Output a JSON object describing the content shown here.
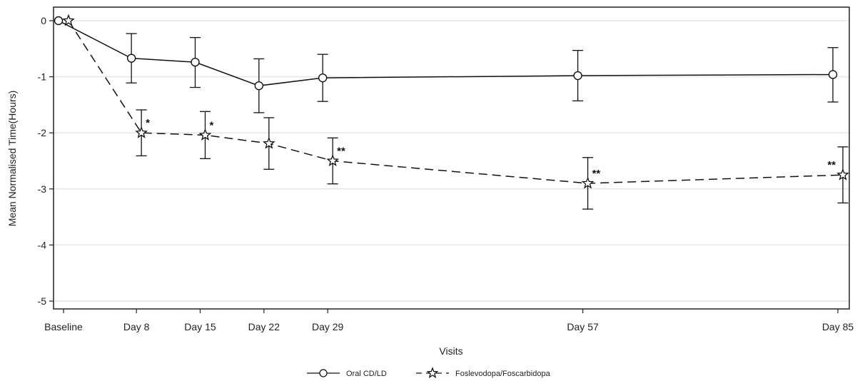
{
  "chart_data": {
    "type": "line",
    "title": "",
    "xlabel": "Visits",
    "ylabel": "Mean Normalised Time(Hours)",
    "x_day_values": [
      0,
      8,
      15,
      22,
      29,
      57,
      85
    ],
    "categories": [
      "Baseline",
      "Day 8",
      "Day 15",
      "Day 22",
      "Day 29",
      "Day 57",
      "Day 85"
    ],
    "ylim": [
      -5.2,
      0.25
    ],
    "yticks": [
      0,
      -1,
      -2,
      -3,
      -4,
      -5
    ],
    "grid": "horizontal",
    "legend_position": "bottom-center",
    "series": [
      {
        "name": "Oral CD/LD",
        "marker": "circle",
        "line_style": "solid",
        "values": [
          0,
          -0.67,
          -0.74,
          -1.16,
          -1.02,
          -0.98,
          -0.96
        ],
        "error_lower": [
          0,
          -1.11,
          -1.19,
          -1.64,
          -1.44,
          -1.43,
          -1.45
        ],
        "error_upper": [
          0,
          -0.23,
          -0.3,
          -0.68,
          -0.6,
          -0.53,
          -0.48
        ],
        "annotations": [
          "",
          "",
          "",
          "",
          "",
          "",
          ""
        ]
      },
      {
        "name": "Foslevodopa/Foscarbidopa",
        "marker": "star",
        "line_style": "dashed",
        "values": [
          0,
          -2.0,
          -2.04,
          -2.19,
          -2.5,
          -2.9,
          -2.75
        ],
        "error_lower": [
          0,
          -2.41,
          -2.46,
          -2.65,
          -2.91,
          -3.36,
          -3.25
        ],
        "error_upper": [
          0,
          -1.59,
          -1.62,
          -1.73,
          -2.09,
          -2.44,
          -2.25
        ],
        "annotations": [
          "",
          "*",
          "*",
          "",
          "**",
          "**",
          "**"
        ]
      }
    ]
  }
}
